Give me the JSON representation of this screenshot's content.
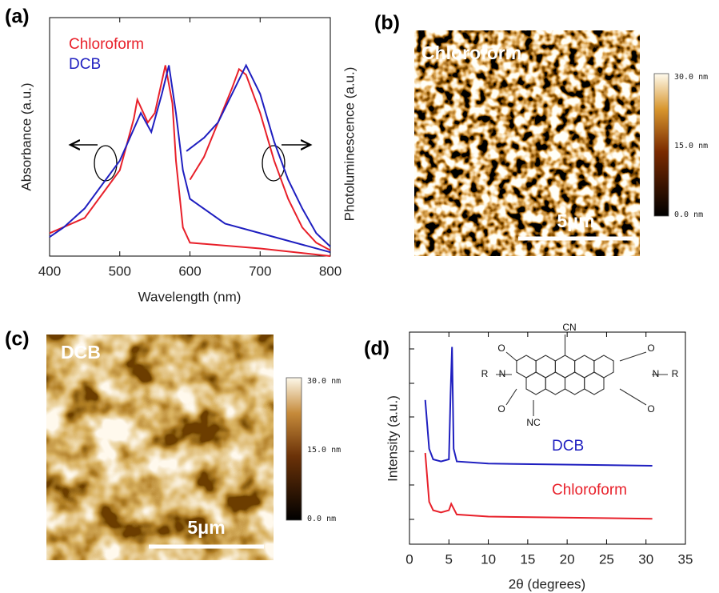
{
  "panel_labels": [
    "(a)",
    "(b)",
    "(c)",
    "(d)"
  ],
  "chart_data": [
    {
      "type": "line",
      "xlabel": "Wavelength (nm)",
      "ylabel": "Absorbance (a.u.)",
      "y2label": "Photoluminescence (a.u.)",
      "xlim": [
        400,
        800
      ],
      "xticks": [
        400,
        500,
        600,
        700,
        800
      ],
      "ylim": [
        0,
        1.25
      ],
      "y2lim": [
        0,
        1.25
      ],
      "series": [
        {
          "name": "Chloroform",
          "color": "#e8202a",
          "x": [
            400,
            450,
            480,
            500,
            520,
            525,
            540,
            550,
            565,
            575,
            580,
            590,
            600,
            700,
            800
          ],
          "values": [
            0.12,
            0.2,
            0.35,
            0.45,
            0.72,
            0.82,
            0.7,
            0.75,
            1.0,
            0.8,
            0.5,
            0.15,
            0.07,
            0.04,
            0.0
          ]
        },
        {
          "name": "DCB",
          "color": "#1f1fc0",
          "x": [
            400,
            420,
            450,
            480,
            500,
            530,
            545,
            560,
            570,
            580,
            590,
            600,
            650,
            700,
            800
          ],
          "values": [
            0.1,
            0.15,
            0.25,
            0.4,
            0.5,
            0.75,
            0.65,
            0.85,
            1.0,
            0.75,
            0.45,
            0.3,
            0.17,
            0.12,
            0.02
          ]
        },
        {
          "color": "#e8202a",
          "axis": "y2",
          "x": [
            600,
            620,
            640,
            660,
            670,
            680,
            700,
            720,
            740,
            760,
            780,
            800
          ],
          "values": [
            0.4,
            0.52,
            0.7,
            0.88,
            0.98,
            0.95,
            0.75,
            0.5,
            0.3,
            0.15,
            0.07,
            0.03
          ]
        },
        {
          "color": "#1f1fc0",
          "axis": "y2",
          "x": [
            595,
            620,
            640,
            660,
            680,
            700,
            720,
            740,
            760,
            780,
            800
          ],
          "values": [
            0.55,
            0.62,
            0.7,
            0.85,
            1.0,
            0.85,
            0.6,
            0.4,
            0.25,
            0.12,
            0.05
          ]
        }
      ]
    },
    {
      "type": "line",
      "xlabel": "2θ (degrees)",
      "ylabel": "Intensity (a.u.)",
      "xlim": [
        0,
        35
      ],
      "xticks": [
        0,
        5,
        10,
        15,
        20,
        25,
        30,
        35
      ],
      "ylim": [
        0,
        1
      ],
      "series": [
        {
          "name": "DCB",
          "color": "#1f1fc0",
          "x": [
            2,
            2.5,
            3,
            4,
            5,
            5.2,
            5.4,
            5.6,
            6,
            10,
            30.8
          ],
          "values": [
            0.68,
            0.45,
            0.4,
            0.39,
            0.4,
            0.7,
            0.93,
            0.45,
            0.39,
            0.38,
            0.37
          ]
        },
        {
          "name": "Chloroform",
          "color": "#e8202a",
          "x": [
            2,
            2.5,
            3,
            4,
            5,
            5.3,
            6,
            10,
            30.8
          ],
          "values": [
            0.43,
            0.2,
            0.16,
            0.15,
            0.16,
            0.19,
            0.14,
            0.13,
            0.12
          ]
        }
      ]
    }
  ],
  "afm_images": [
    {
      "label": "Chloroform",
      "scale_bar": "5μm",
      "colorbar_labels": [
        "30.0 nm",
        "15.0 nm",
        "0.0 nm"
      ]
    },
    {
      "label": "DCB",
      "scale_bar": "5μm",
      "colorbar_labels": [
        "30.0 nm",
        "15.0 nm",
        "0.0 nm"
      ]
    }
  ],
  "structure_labels": [
    "CN",
    "O",
    "N",
    "R",
    "O",
    "O",
    "N",
    "R",
    "O",
    "NC"
  ]
}
